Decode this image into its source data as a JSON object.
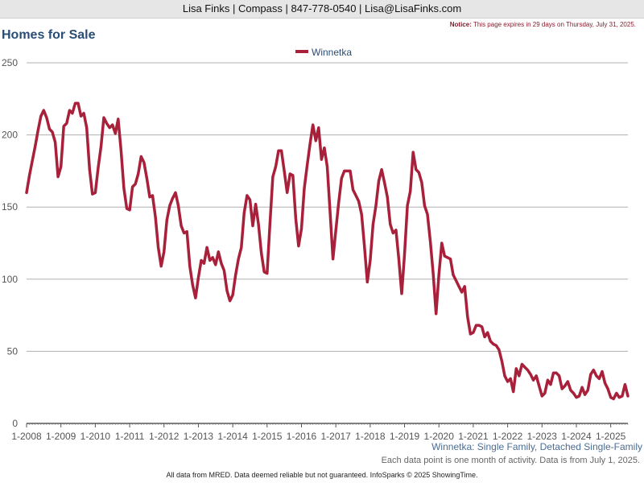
{
  "header": {
    "contact": "Lisa Finks | Compass | 847-778-0540 | Lisa@LisaFinks.com",
    "notice_label": "Notice:",
    "notice_text": "This page expires in 29 days on Thursday, July 31, 2025."
  },
  "footer": {
    "subtitle": "Winnetka: Single Family, Detached Single-Family",
    "note": "Each data point is one month of activity. Data is from July 1, 2025.",
    "disclaimer": "All data from MRED. Data deemed reliable but not guaranteed. InfoSparks © 2025 ShowingTime."
  },
  "colors": {
    "series": "#a8203a",
    "title": "#2a4d75",
    "grid": "#b0b0b0"
  },
  "chart_data": {
    "type": "line",
    "title": "Homes for Sale",
    "xlabel": "",
    "ylabel": "",
    "ylim": [
      0,
      250
    ],
    "yticks": [
      0,
      50,
      100,
      150,
      200,
      250
    ],
    "xticks": [
      "1-2008",
      "1-2009",
      "1-2010",
      "1-2011",
      "1-2012",
      "1-2013",
      "1-2014",
      "1-2015",
      "1-2016",
      "1-2017",
      "1-2018",
      "1-2019",
      "1-2020",
      "1-2021",
      "1-2022",
      "1-2023",
      "1-2024",
      "1-2025"
    ],
    "x_start": "1-2008",
    "x_step": "1 month",
    "grid": true,
    "legend_position": "top-center",
    "series": [
      {
        "name": "Winnetka",
        "values": [
          160,
          172,
          182,
          192,
          203,
          213,
          217,
          212,
          204,
          202,
          195,
          171,
          178,
          206,
          208,
          217,
          215,
          222,
          222,
          213,
          215,
          205,
          176,
          159,
          160,
          177,
          192,
          212,
          208,
          205,
          207,
          201,
          211,
          189,
          163,
          149,
          148,
          164,
          166,
          173,
          185,
          181,
          170,
          157,
          158,
          143,
          122,
          109,
          119,
          141,
          151,
          156,
          160,
          151,
          137,
          132,
          133,
          109,
          96,
          87,
          101,
          113,
          111,
          122,
          113,
          115,
          110,
          119,
          111,
          106,
          92,
          85,
          89,
          103,
          114,
          122,
          146,
          158,
          155,
          137,
          152,
          138,
          118,
          105,
          104,
          139,
          171,
          178,
          189,
          189,
          175,
          160,
          173,
          172,
          142,
          123,
          135,
          163,
          179,
          194,
          207,
          196,
          205,
          183,
          191,
          178,
          146,
          114,
          134,
          153,
          170,
          175,
          175,
          175,
          162,
          158,
          154,
          145,
          123,
          98,
          113,
          138,
          151,
          168,
          176,
          167,
          157,
          138,
          132,
          134,
          114,
          90,
          117,
          151,
          161,
          188,
          176,
          174,
          167,
          151,
          145,
          126,
          104,
          76,
          103,
          125,
          116,
          115,
          114,
          103,
          99,
          95,
          91,
          95,
          74,
          62,
          63,
          68,
          68,
          67,
          60,
          63,
          57,
          55,
          54,
          51,
          43,
          33,
          29,
          31,
          22,
          38,
          33,
          41,
          39,
          37,
          34,
          30,
          33,
          26,
          19,
          21,
          30,
          27,
          35,
          35,
          33,
          24,
          26,
          29,
          23,
          21,
          18,
          19,
          25,
          20,
          23,
          34,
          37,
          33,
          31,
          36,
          28,
          24,
          18,
          17,
          21,
          18,
          19,
          27,
          19
        ]
      }
    ]
  }
}
